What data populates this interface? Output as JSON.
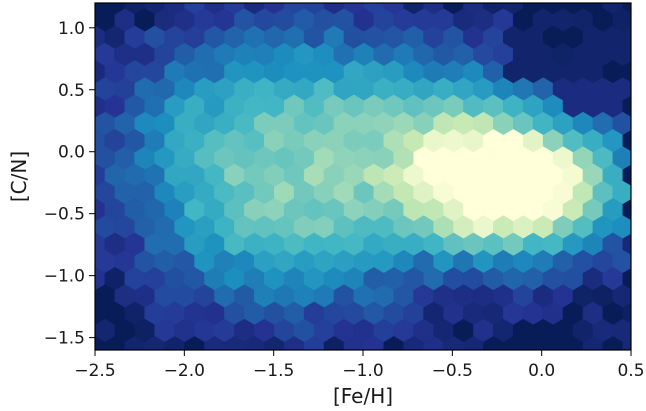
{
  "chart_data": {
    "type": "hexbin",
    "xlabel": "[Fe/H]",
    "ylabel": "[C/N]",
    "xlim": [
      -2.5,
      0.5
    ],
    "ylim": [
      -1.6,
      1.2
    ],
    "x_ticks": [
      -2.5,
      -2.0,
      -1.5,
      -1.0,
      -0.5,
      0.0,
      0.5
    ],
    "x_tick_labels": [
      "−2.5",
      "−2.0",
      "−1.5",
      "−1.0",
      "−0.5",
      "0.0",
      "0.5"
    ],
    "y_ticks": [
      1.0,
      0.5,
      0.0,
      -0.5,
      -1.0,
      -1.5
    ],
    "y_tick_labels": [
      "1.0",
      "0.5",
      "0.0",
      "−0.5",
      "−1.0",
      "−1.5"
    ],
    "grid": false,
    "colormap": "YlGnBu_r",
    "background_color": "#081d58",
    "density_peak": {
      "x": -0.1,
      "y": -0.3
    },
    "density_components": [
      {
        "x": -0.1,
        "y": -0.3,
        "sx": 0.38,
        "sy": 0.33,
        "weight": 1.0
      },
      {
        "x": -0.35,
        "y": -0.15,
        "sx": 0.35,
        "sy": 0.42,
        "weight": 0.45
      },
      {
        "x": -1.3,
        "y": -0.6,
        "sx": 0.42,
        "sy": 0.45,
        "weight": 0.38
      },
      {
        "x": -1.55,
        "y": 0.0,
        "sx": 0.5,
        "sy": 0.55,
        "weight": 0.32
      },
      {
        "x": -1.1,
        "y": 0.45,
        "sx": 0.55,
        "sy": 0.4,
        "weight": 0.22
      },
      {
        "x": -0.7,
        "y": 0.05,
        "sx": 0.4,
        "sy": 0.35,
        "weight": 0.2
      },
      {
        "x": -1.95,
        "y": -0.2,
        "sx": 0.3,
        "sy": 0.6,
        "weight": 0.12
      }
    ]
  }
}
